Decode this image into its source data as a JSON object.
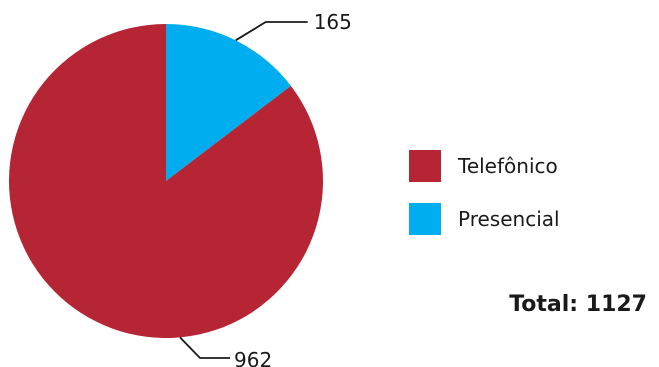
{
  "chart_data": {
    "type": "pie",
    "categories": [
      "Telefônico",
      "Presencial"
    ],
    "values": [
      962,
      165
    ],
    "colors": [
      "#b52534",
      "#00aeef"
    ],
    "data_labels": [
      "962",
      "165"
    ],
    "legend": {
      "placement": "right",
      "entries": [
        "Telefônico",
        "Presencial"
      ]
    },
    "total_label": "Total: 1127"
  }
}
